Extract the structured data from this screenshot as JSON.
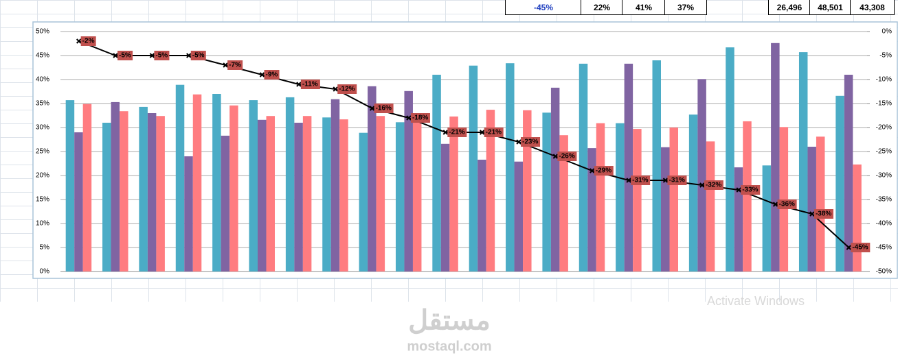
{
  "top_cells": [
    "-45%",
    "22%",
    "41%",
    "37%",
    "26,496",
    "48,501",
    "43,308"
  ],
  "watermark": {
    "arabic": "مستقل",
    "latin": "mostaql.com"
  },
  "os_notice": "Activate Windows",
  "chart_data": {
    "type": "bar",
    "categories": [
      null,
      null,
      null,
      null,
      null,
      null,
      null,
      null,
      null,
      null,
      null,
      null,
      null,
      null,
      null,
      null,
      null,
      null,
      null,
      null,
      null,
      null
    ],
    "series": [
      {
        "color": "#4bacc6",
        "values": [
          35.7,
          31,
          34.3,
          38.9,
          37,
          35.7,
          36.3,
          32.1,
          28.9,
          31.1,
          41,
          42.9,
          43.4,
          33.1,
          43.3,
          30.9,
          44,
          32.7,
          46.7,
          22.1,
          45.7,
          36.6
        ]
      },
      {
        "color": "#8064a2",
        "values": [
          29,
          35.3,
          33,
          24,
          28.3,
          31.6,
          31,
          35.9,
          38.6,
          37.6,
          26.6,
          23.3,
          22.9,
          38.3,
          25.7,
          43.3,
          25.9,
          40.1,
          21.7,
          47.6,
          26,
          41
        ]
      },
      {
        "color": "#ff7c80",
        "values": [
          34.9,
          33.4,
          32.4,
          36.9,
          34.6,
          32.4,
          32.4,
          31.7,
          32.4,
          31.1,
          32.3,
          33.7,
          33.6,
          28.4,
          30.9,
          29.7,
          30,
          27.1,
          31.3,
          30.1,
          28.1,
          22.3
        ]
      },
      {
        "type": "line",
        "axis": "y2",
        "color": "#000000",
        "label_color": "#c0504d",
        "values": [
          -2,
          -5,
          -5,
          -5,
          -7,
          -9,
          -11,
          -12,
          -16,
          -18,
          -21,
          -21,
          -23,
          -26,
          -29,
          -31,
          -31,
          -32,
          -33,
          -36,
          -38,
          -45
        ],
        "value_labels": [
          "-2%",
          "-5%",
          "-5%",
          "-5%",
          "-7%",
          "-9%",
          "-11%",
          "-12%",
          "-16%",
          "-18%",
          "-21%",
          "-21%",
          "-23%",
          "-26%",
          "-29%",
          "-31%",
          "-31%",
          "-32%",
          "-33%",
          "-36%",
          "-38%",
          "-45%"
        ]
      }
    ],
    "ylim": [
      0,
      50
    ],
    "yticks": [
      {
        "value": 0,
        "label": "0%"
      },
      {
        "value": 5,
        "label": "5%"
      },
      {
        "value": 10,
        "label": "10%"
      },
      {
        "value": 15,
        "label": "15%"
      },
      {
        "value": 20,
        "label": "20%"
      },
      {
        "value": 25,
        "label": "25%"
      },
      {
        "value": 30,
        "label": "30%"
      },
      {
        "value": 35,
        "label": "35%"
      },
      {
        "value": 40,
        "label": "40%"
      },
      {
        "value": 45,
        "label": "45%"
      },
      {
        "value": 50,
        "label": "50%"
      }
    ],
    "y2lim": [
      -50,
      0
    ],
    "y2ticks": [
      {
        "value": 0,
        "label": "0%"
      },
      {
        "value": -5,
        "label": "-5%"
      },
      {
        "value": -10,
        "label": "-10%"
      },
      {
        "value": -15,
        "label": "-15%"
      },
      {
        "value": -20,
        "label": "-20%"
      },
      {
        "value": -25,
        "label": "-25%"
      },
      {
        "value": -30,
        "label": "-30%"
      },
      {
        "value": -35,
        "label": "-35%"
      },
      {
        "value": -40,
        "label": "-40%"
      },
      {
        "value": -45,
        "label": "-45%"
      },
      {
        "value": -50,
        "label": "-50%"
      }
    ],
    "grid": true
  }
}
